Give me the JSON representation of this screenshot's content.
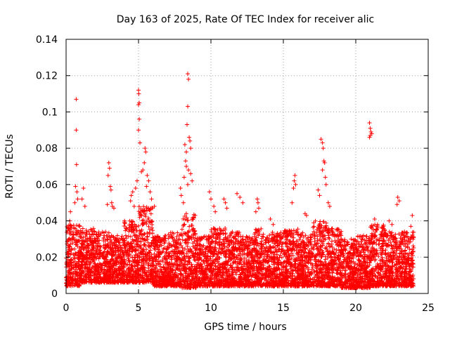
{
  "chart_data": {
    "type": "scatter",
    "title": "Day 163 of 2025, Rate Of TEC Index for receiver alic",
    "xlabel": "GPS time / hours",
    "ylabel": "ROTI / TECUs",
    "xlim": [
      0,
      25
    ],
    "ylim": [
      0,
      0.14
    ],
    "xticks": [
      0,
      5,
      10,
      15,
      20,
      25
    ],
    "xtick_labels": [
      "0",
      "5",
      "10",
      "15",
      "20",
      "25"
    ],
    "yticks": [
      0,
      0.02,
      0.04,
      0.06,
      0.08,
      0.1,
      0.12,
      0.14
    ],
    "ytick_labels": [
      "0",
      "0.02",
      "0.04",
      "0.06",
      "0.08",
      "0.1",
      "0.12",
      "0.14"
    ],
    "grid": true,
    "marker": "+",
    "color": "#ff0000",
    "series": [
      {
        "name": "ROTI",
        "points": [
          [
            0.7,
            0.107
          ],
          [
            0.7,
            0.09
          ],
          [
            0.72,
            0.071
          ],
          [
            0.65,
            0.059
          ],
          [
            0.75,
            0.056
          ],
          [
            0.8,
            0.052
          ],
          [
            0.6,
            0.05
          ],
          [
            0.3,
            0.045
          ],
          [
            0.25,
            0.04
          ],
          [
            1.2,
            0.058
          ],
          [
            1.1,
            0.052
          ],
          [
            1.3,
            0.048
          ],
          [
            2.95,
            0.072
          ],
          [
            3.0,
            0.069
          ],
          [
            2.9,
            0.065
          ],
          [
            3.05,
            0.059
          ],
          [
            3.1,
            0.057
          ],
          [
            3.15,
            0.05
          ],
          [
            3.2,
            0.048
          ],
          [
            2.85,
            0.049
          ],
          [
            3.3,
            0.047
          ],
          [
            4.5,
            0.054
          ],
          [
            4.45,
            0.051
          ],
          [
            4.6,
            0.056
          ],
          [
            4.7,
            0.048
          ],
          [
            5.0,
            0.112
          ],
          [
            5.02,
            0.11
          ],
          [
            5.05,
            0.105
          ],
          [
            5.0,
            0.104
          ],
          [
            5.05,
            0.096
          ],
          [
            5.1,
            0.083
          ],
          [
            5.0,
            0.09
          ],
          [
            5.45,
            0.08
          ],
          [
            5.5,
            0.078
          ],
          [
            5.4,
            0.072
          ],
          [
            5.2,
            0.067
          ],
          [
            5.3,
            0.068
          ],
          [
            5.6,
            0.065
          ],
          [
            5.7,
            0.062
          ],
          [
            5.55,
            0.059
          ],
          [
            5.8,
            0.056
          ],
          [
            5.9,
            0.052
          ],
          [
            6.1,
            0.048
          ],
          [
            4.9,
            0.062
          ],
          [
            4.8,
            0.058
          ],
          [
            8.4,
            0.121
          ],
          [
            8.45,
            0.118
          ],
          [
            8.4,
            0.103
          ],
          [
            8.35,
            0.093
          ],
          [
            8.2,
            0.082
          ],
          [
            8.3,
            0.078
          ],
          [
            8.5,
            0.086
          ],
          [
            8.55,
            0.084
          ],
          [
            8.6,
            0.08
          ],
          [
            8.25,
            0.073
          ],
          [
            8.3,
            0.07
          ],
          [
            8.45,
            0.068
          ],
          [
            8.15,
            0.064
          ],
          [
            8.4,
            0.06
          ],
          [
            8.6,
            0.066
          ],
          [
            8.7,
            0.062
          ],
          [
            7.9,
            0.058
          ],
          [
            7.95,
            0.054
          ],
          [
            8.1,
            0.05
          ],
          [
            9.9,
            0.056
          ],
          [
            10.0,
            0.052
          ],
          [
            10.2,
            0.048
          ],
          [
            10.3,
            0.045
          ],
          [
            10.9,
            0.052
          ],
          [
            11.0,
            0.05
          ],
          [
            11.1,
            0.047
          ],
          [
            11.8,
            0.055
          ],
          [
            12.0,
            0.053
          ],
          [
            12.2,
            0.05
          ],
          [
            13.2,
            0.052
          ],
          [
            13.25,
            0.05
          ],
          [
            13.3,
            0.047
          ],
          [
            13.1,
            0.045
          ],
          [
            14.1,
            0.041
          ],
          [
            14.3,
            0.038
          ],
          [
            15.8,
            0.065
          ],
          [
            15.75,
            0.062
          ],
          [
            15.85,
            0.06
          ],
          [
            15.7,
            0.058
          ],
          [
            15.6,
            0.05
          ],
          [
            16.5,
            0.044
          ],
          [
            16.6,
            0.043
          ],
          [
            17.6,
            0.085
          ],
          [
            17.7,
            0.083
          ],
          [
            17.75,
            0.08
          ],
          [
            17.8,
            0.073
          ],
          [
            17.85,
            0.072
          ],
          [
            17.7,
            0.068
          ],
          [
            17.9,
            0.064
          ],
          [
            17.95,
            0.06
          ],
          [
            17.4,
            0.057
          ],
          [
            17.5,
            0.054
          ],
          [
            18.1,
            0.05
          ],
          [
            18.2,
            0.048
          ],
          [
            20.95,
            0.094
          ],
          [
            21.0,
            0.091
          ],
          [
            21.05,
            0.089
          ],
          [
            21.0,
            0.087
          ],
          [
            21.1,
            0.088
          ],
          [
            20.95,
            0.086
          ],
          [
            21.3,
            0.041
          ],
          [
            21.5,
            0.038
          ],
          [
            22.9,
            0.053
          ],
          [
            23.0,
            0.051
          ],
          [
            22.85,
            0.049
          ],
          [
            23.9,
            0.043
          ],
          [
            23.8,
            0.037
          ],
          [
            22.3,
            0.04
          ],
          [
            22.5,
            0.038
          ]
        ],
        "density": [
          {
            "from": 0.0,
            "to": 1.0,
            "low": 0.004,
            "high": 0.038
          },
          {
            "from": 1.0,
            "to": 2.0,
            "low": 0.006,
            "high": 0.036
          },
          {
            "from": 2.0,
            "to": 3.0,
            "low": 0.006,
            "high": 0.034
          },
          {
            "from": 3.0,
            "to": 4.0,
            "low": 0.006,
            "high": 0.032
          },
          {
            "from": 4.0,
            "to": 5.0,
            "low": 0.006,
            "high": 0.04
          },
          {
            "from": 5.0,
            "to": 6.0,
            "low": 0.006,
            "high": 0.048
          },
          {
            "from": 6.0,
            "to": 7.0,
            "low": 0.004,
            "high": 0.032
          },
          {
            "from": 7.0,
            "to": 8.0,
            "low": 0.004,
            "high": 0.034
          },
          {
            "from": 8.0,
            "to": 9.0,
            "low": 0.003,
            "high": 0.044
          },
          {
            "from": 9.0,
            "to": 10.0,
            "low": 0.004,
            "high": 0.032
          },
          {
            "from": 10.0,
            "to": 11.0,
            "low": 0.004,
            "high": 0.036
          },
          {
            "from": 11.0,
            "to": 12.0,
            "low": 0.004,
            "high": 0.034
          },
          {
            "from": 12.0,
            "to": 13.0,
            "low": 0.004,
            "high": 0.032
          },
          {
            "from": 13.0,
            "to": 14.0,
            "low": 0.004,
            "high": 0.036
          },
          {
            "from": 14.0,
            "to": 15.0,
            "low": 0.004,
            "high": 0.034
          },
          {
            "from": 15.0,
            "to": 16.0,
            "low": 0.004,
            "high": 0.036
          },
          {
            "from": 16.0,
            "to": 17.0,
            "low": 0.004,
            "high": 0.034
          },
          {
            "from": 17.0,
            "to": 18.0,
            "low": 0.004,
            "high": 0.04
          },
          {
            "from": 18.0,
            "to": 19.0,
            "low": 0.004,
            "high": 0.036
          },
          {
            "from": 19.0,
            "to": 20.0,
            "low": 0.003,
            "high": 0.03
          },
          {
            "from": 20.0,
            "to": 21.0,
            "low": 0.003,
            "high": 0.032
          },
          {
            "from": 21.0,
            "to": 22.0,
            "low": 0.004,
            "high": 0.038
          },
          {
            "from": 22.0,
            "to": 23.0,
            "low": 0.004,
            "high": 0.034
          },
          {
            "from": 23.0,
            "to": 24.0,
            "low": 0.004,
            "high": 0.034
          }
        ]
      }
    ]
  }
}
